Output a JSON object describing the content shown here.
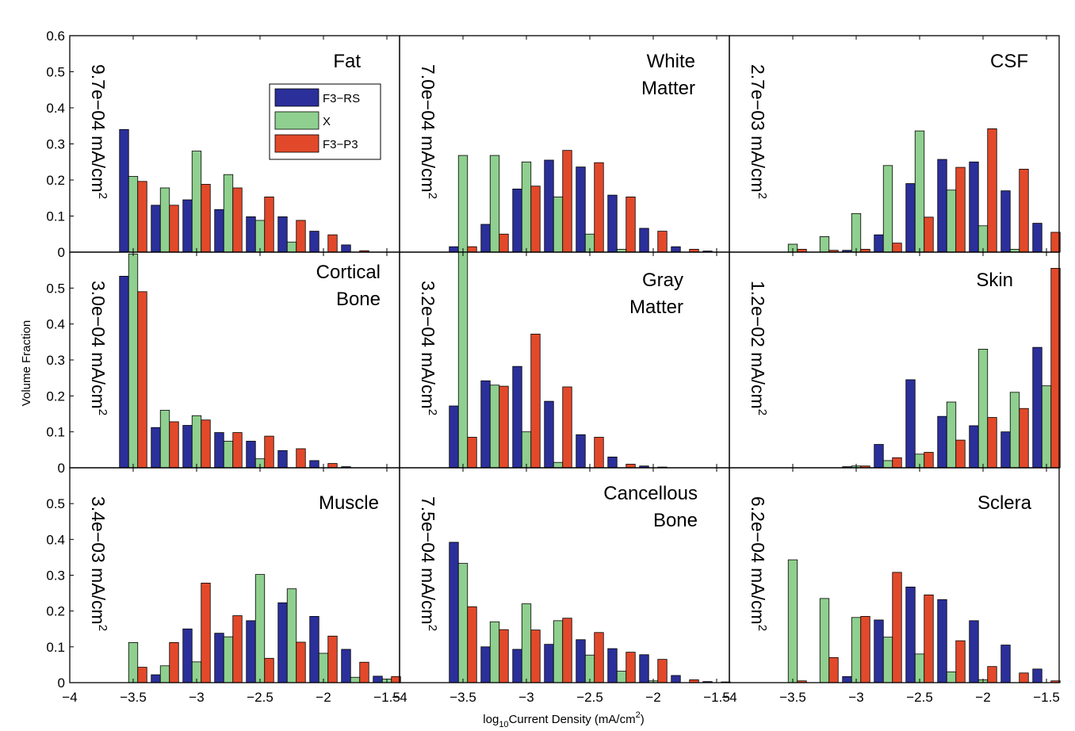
{
  "figure": {
    "ylabel": "Volume Fraction",
    "xlabel_prefix": "log",
    "xlabel_sub": "10",
    "xlabel_main": "Current Density (mA/cm",
    "xlabel_sup": "2",
    "xlabel_end": ")"
  },
  "legend": {
    "entries": [
      {
        "label": "F3−RS",
        "color": "#2b2f9a"
      },
      {
        "label": "X",
        "color": "#8fcf8f"
      },
      {
        "label": "F3−P3",
        "color": "#e2492a"
      }
    ]
  },
  "colors": [
    "#2b2f9a",
    "#8fcf8f",
    "#e2492a"
  ],
  "chart_data": {
    "type": "bar",
    "xlim": [
      -4,
      -1.4
    ],
    "x": [
      -3.5,
      -3.25,
      -3.0,
      -2.75,
      -2.5,
      -2.25,
      -2.0,
      -1.75,
      -1.5
    ],
    "xticks": [
      "−4",
      "−3.5",
      "−3",
      "−2.5",
      "−2",
      "−1.5"
    ],
    "xtick_values": [
      -4,
      -3.5,
      -3,
      -2.5,
      -2,
      -1.5
    ],
    "series_names": [
      "F3−RS",
      "X",
      "F3−P3"
    ],
    "panels": [
      {
        "id": "fat",
        "title": [
          "Fat"
        ],
        "side_text": "9.7e−04 mA/cm",
        "ylim": [
          0,
          0.6
        ],
        "yticks": [
          "0",
          "0.1",
          "0.2",
          "0.3",
          "0.4",
          "0.5",
          "0.6"
        ],
        "ytick_values": [
          0,
          0.1,
          0.2,
          0.3,
          0.4,
          0.5,
          0.6
        ],
        "series": [
          [
            0.34,
            0.13,
            0.145,
            0.118,
            0.098,
            0.098,
            0.058,
            0.02,
            0.0
          ],
          [
            0.21,
            0.178,
            0.28,
            0.215,
            0.088,
            0.028,
            0.0,
            0.0,
            0.0
          ],
          [
            0.196,
            0.13,
            0.188,
            0.178,
            0.153,
            0.088,
            0.048,
            0.004,
            0.0
          ]
        ]
      },
      {
        "id": "white-matter",
        "title": [
          "White",
          "Matter"
        ],
        "side_text": "7.0e−04 mA/cm",
        "ylim": [
          0,
          0.6
        ],
        "yticks": [],
        "ytick_values": [],
        "series": [
          [
            0.015,
            0.077,
            0.175,
            0.255,
            0.236,
            0.158,
            0.066,
            0.015,
            0.003
          ],
          [
            0.268,
            0.268,
            0.25,
            0.153,
            0.05,
            0.008,
            0.0,
            0.0,
            0.0
          ],
          [
            0.015,
            0.05,
            0.183,
            0.282,
            0.248,
            0.153,
            0.058,
            0.008,
            0.0
          ]
        ]
      },
      {
        "id": "csf",
        "title": [
          "CSF"
        ],
        "side_text": "2.7e−03 mA/cm",
        "ylim": [
          0,
          0.6
        ],
        "yticks": [],
        "ytick_values": [],
        "series": [
          [
            0.0,
            0.0,
            0.005,
            0.048,
            0.19,
            0.257,
            0.25,
            0.17,
            0.08
          ],
          [
            0.022,
            0.043,
            0.107,
            0.24,
            0.336,
            0.172,
            0.073,
            0.008,
            0.0
          ],
          [
            0.008,
            0.005,
            0.008,
            0.025,
            0.097,
            0.235,
            0.342,
            0.23,
            0.055
          ]
        ]
      },
      {
        "id": "cortical-bone",
        "title": [
          "Cortical",
          "Bone"
        ],
        "side_text": "3.0e−04 mA/cm",
        "ylim": [
          0,
          0.6
        ],
        "yticks": [
          "0",
          "0.1",
          "0.2",
          "0.3",
          "0.4",
          "0.5"
        ],
        "ytick_values": [
          0,
          0.1,
          0.2,
          0.3,
          0.4,
          0.5
        ],
        "series": [
          [
            0.533,
            0.112,
            0.118,
            0.098,
            0.074,
            0.048,
            0.02,
            0.003,
            0.0
          ],
          [
            0.595,
            0.16,
            0.145,
            0.074,
            0.025,
            0.0,
            0.0,
            0.0,
            0.0
          ],
          [
            0.49,
            0.128,
            0.133,
            0.098,
            0.088,
            0.053,
            0.012,
            0.0,
            0.0
          ]
        ]
      },
      {
        "id": "gray-matter",
        "title": [
          "Gray",
          "Matter"
        ],
        "side_text": "3.2e−04 mA/cm",
        "ylim": [
          0,
          0.6
        ],
        "yticks": [],
        "ytick_values": [],
        "series": [
          [
            0.172,
            0.242,
            0.282,
            0.185,
            0.092,
            0.03,
            0.005,
            0.0,
            0.0
          ],
          [
            0.6,
            0.23,
            0.1,
            0.015,
            0.0,
            0.0,
            0.0,
            0.0,
            0.0
          ],
          [
            0.085,
            0.227,
            0.372,
            0.225,
            0.085,
            0.01,
            0.002,
            0.0,
            0.0
          ]
        ]
      },
      {
        "id": "skin",
        "title": [
          "Skin"
        ],
        "side_text": "1.2e−02 mA/cm",
        "ylim": [
          0,
          0.6
        ],
        "yticks": [],
        "ytick_values": [],
        "series": [
          [
            0.0,
            0.0,
            0.003,
            0.065,
            0.245,
            0.143,
            0.117,
            0.1,
            0.335
          ],
          [
            0.0,
            0.0,
            0.005,
            0.02,
            0.038,
            0.183,
            0.33,
            0.21,
            0.228
          ],
          [
            0.0,
            0.0,
            0.005,
            0.028,
            0.043,
            0.077,
            0.14,
            0.165,
            0.555
          ]
        ]
      },
      {
        "id": "muscle",
        "title": [
          "Muscle"
        ],
        "side_text": "3.4e−03 mA/cm",
        "ylim": [
          0,
          0.6
        ],
        "yticks": [
          "0",
          "0.1",
          "0.2",
          "0.3",
          "0.4",
          "0.5"
        ],
        "ytick_values": [
          0,
          0.1,
          0.2,
          0.3,
          0.4,
          0.5
        ],
        "series": [
          [
            0.0,
            0.022,
            0.15,
            0.138,
            0.173,
            0.223,
            0.185,
            0.093,
            0.018
          ],
          [
            0.112,
            0.047,
            0.058,
            0.128,
            0.302,
            0.262,
            0.082,
            0.015,
            0.01
          ],
          [
            0.043,
            0.112,
            0.278,
            0.187,
            0.068,
            0.113,
            0.13,
            0.057,
            0.017
          ]
        ]
      },
      {
        "id": "cancellous-bone",
        "title": [
          "Cancellous",
          "Bone"
        ],
        "side_text": "7.5e−04 mA/cm",
        "ylim": [
          0,
          0.6
        ],
        "yticks": [],
        "ytick_values": [],
        "series": [
          [
            0.392,
            0.1,
            0.093,
            0.107,
            0.12,
            0.095,
            0.078,
            0.02,
            0.003
          ],
          [
            0.333,
            0.17,
            0.22,
            0.173,
            0.077,
            0.032,
            0.005,
            0.0,
            0.0
          ],
          [
            0.212,
            0.148,
            0.147,
            0.18,
            0.14,
            0.085,
            0.065,
            0.008,
            0.002
          ]
        ]
      },
      {
        "id": "sclera",
        "title": [
          "Sclera"
        ],
        "side_text": "6.2e−04 mA/cm",
        "ylim": [
          0,
          0.6
        ],
        "yticks": [],
        "ytick_values": [],
        "series": [
          [
            0.0,
            0.0,
            0.017,
            0.175,
            0.267,
            0.232,
            0.173,
            0.105,
            0.038
          ],
          [
            0.343,
            0.235,
            0.182,
            0.127,
            0.08,
            0.03,
            0.008,
            0.0,
            0.0
          ],
          [
            0.005,
            0.07,
            0.185,
            0.308,
            0.245,
            0.117,
            0.045,
            0.027,
            0.005
          ]
        ]
      }
    ]
  }
}
